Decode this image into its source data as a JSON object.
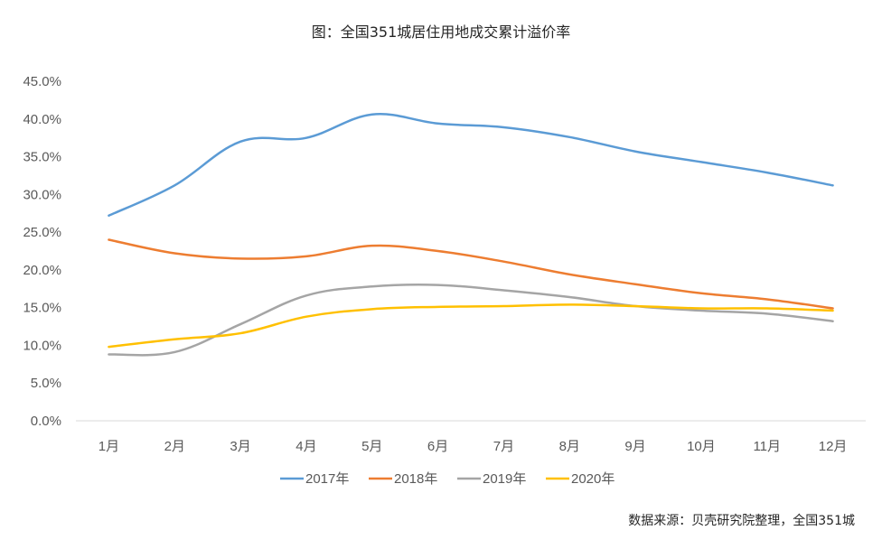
{
  "chart_data": {
    "type": "line",
    "title": "图：全国351城居住用地成交累计溢价率",
    "source": "数据来源：贝壳研究院整理，全国351城",
    "categories": [
      "1月",
      "2月",
      "3月",
      "4月",
      "5月",
      "6月",
      "7月",
      "8月",
      "9月",
      "10月",
      "11月",
      "12月"
    ],
    "ylim": [
      0,
      45
    ],
    "ytick_labels": [
      "0.0%",
      "5.0%",
      "10.0%",
      "15.0%",
      "20.0%",
      "25.0%",
      "30.0%",
      "35.0%",
      "40.0%",
      "45.0%"
    ],
    "legend_position": "bottom",
    "series": [
      {
        "name": "2017年",
        "color": "#5B9BD5",
        "values": [
          27.2,
          31.2,
          37.0,
          37.5,
          40.6,
          39.4,
          38.9,
          37.6,
          35.7,
          34.3,
          32.9,
          31.2
        ]
      },
      {
        "name": "2018年",
        "color": "#ED7D31",
        "values": [
          24.0,
          22.2,
          21.5,
          21.8,
          23.2,
          22.5,
          21.1,
          19.4,
          18.1,
          16.9,
          16.1,
          14.9
        ]
      },
      {
        "name": "2019年",
        "color": "#A5A5A5",
        "values": [
          8.8,
          9.1,
          12.8,
          16.6,
          17.8,
          18.0,
          17.3,
          16.4,
          15.2,
          14.6,
          14.2,
          13.2
        ]
      },
      {
        "name": "2020年",
        "color": "#FFC000",
        "values": [
          9.8,
          10.8,
          11.6,
          13.8,
          14.8,
          15.1,
          15.2,
          15.4,
          15.2,
          14.9,
          14.9,
          14.6
        ]
      }
    ]
  }
}
